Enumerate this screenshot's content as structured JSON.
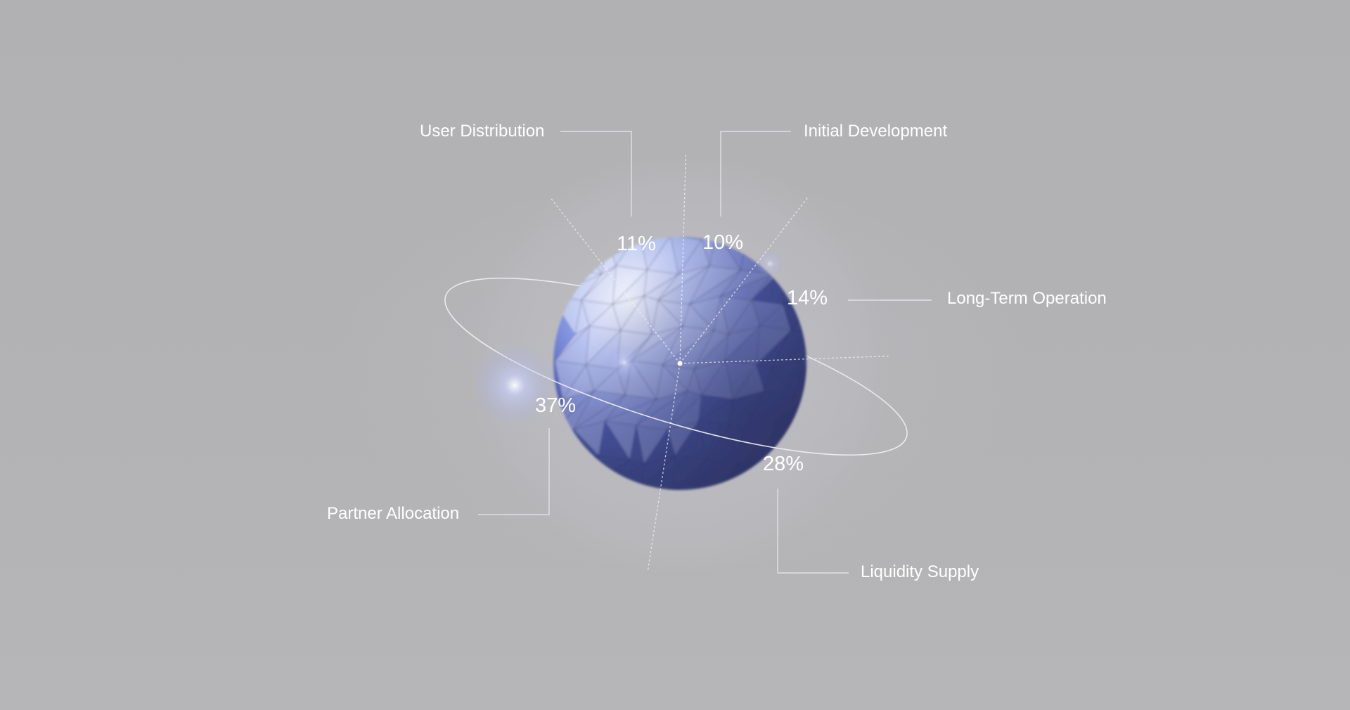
{
  "chart_data": {
    "type": "pie",
    "title": "",
    "categories": [
      "User Distribution",
      "Initial Development",
      "Long-Term Operation",
      "Liquidity Supply",
      "Partner Allocation"
    ],
    "values": [
      11,
      10,
      14,
      28,
      37
    ],
    "value_labels": [
      "11%",
      "10%",
      "14%",
      "28%",
      "37%"
    ],
    "unit": "%",
    "legend": "none",
    "grid": false,
    "colors": {
      "background": "#b3b3b5",
      "sphere_light": "#c6cdf0",
      "sphere_mid": "#6a7ee0",
      "sphere_dark": "#3c4580",
      "label": "#ffffff",
      "leader_line": "#e6e6ea"
    }
  }
}
